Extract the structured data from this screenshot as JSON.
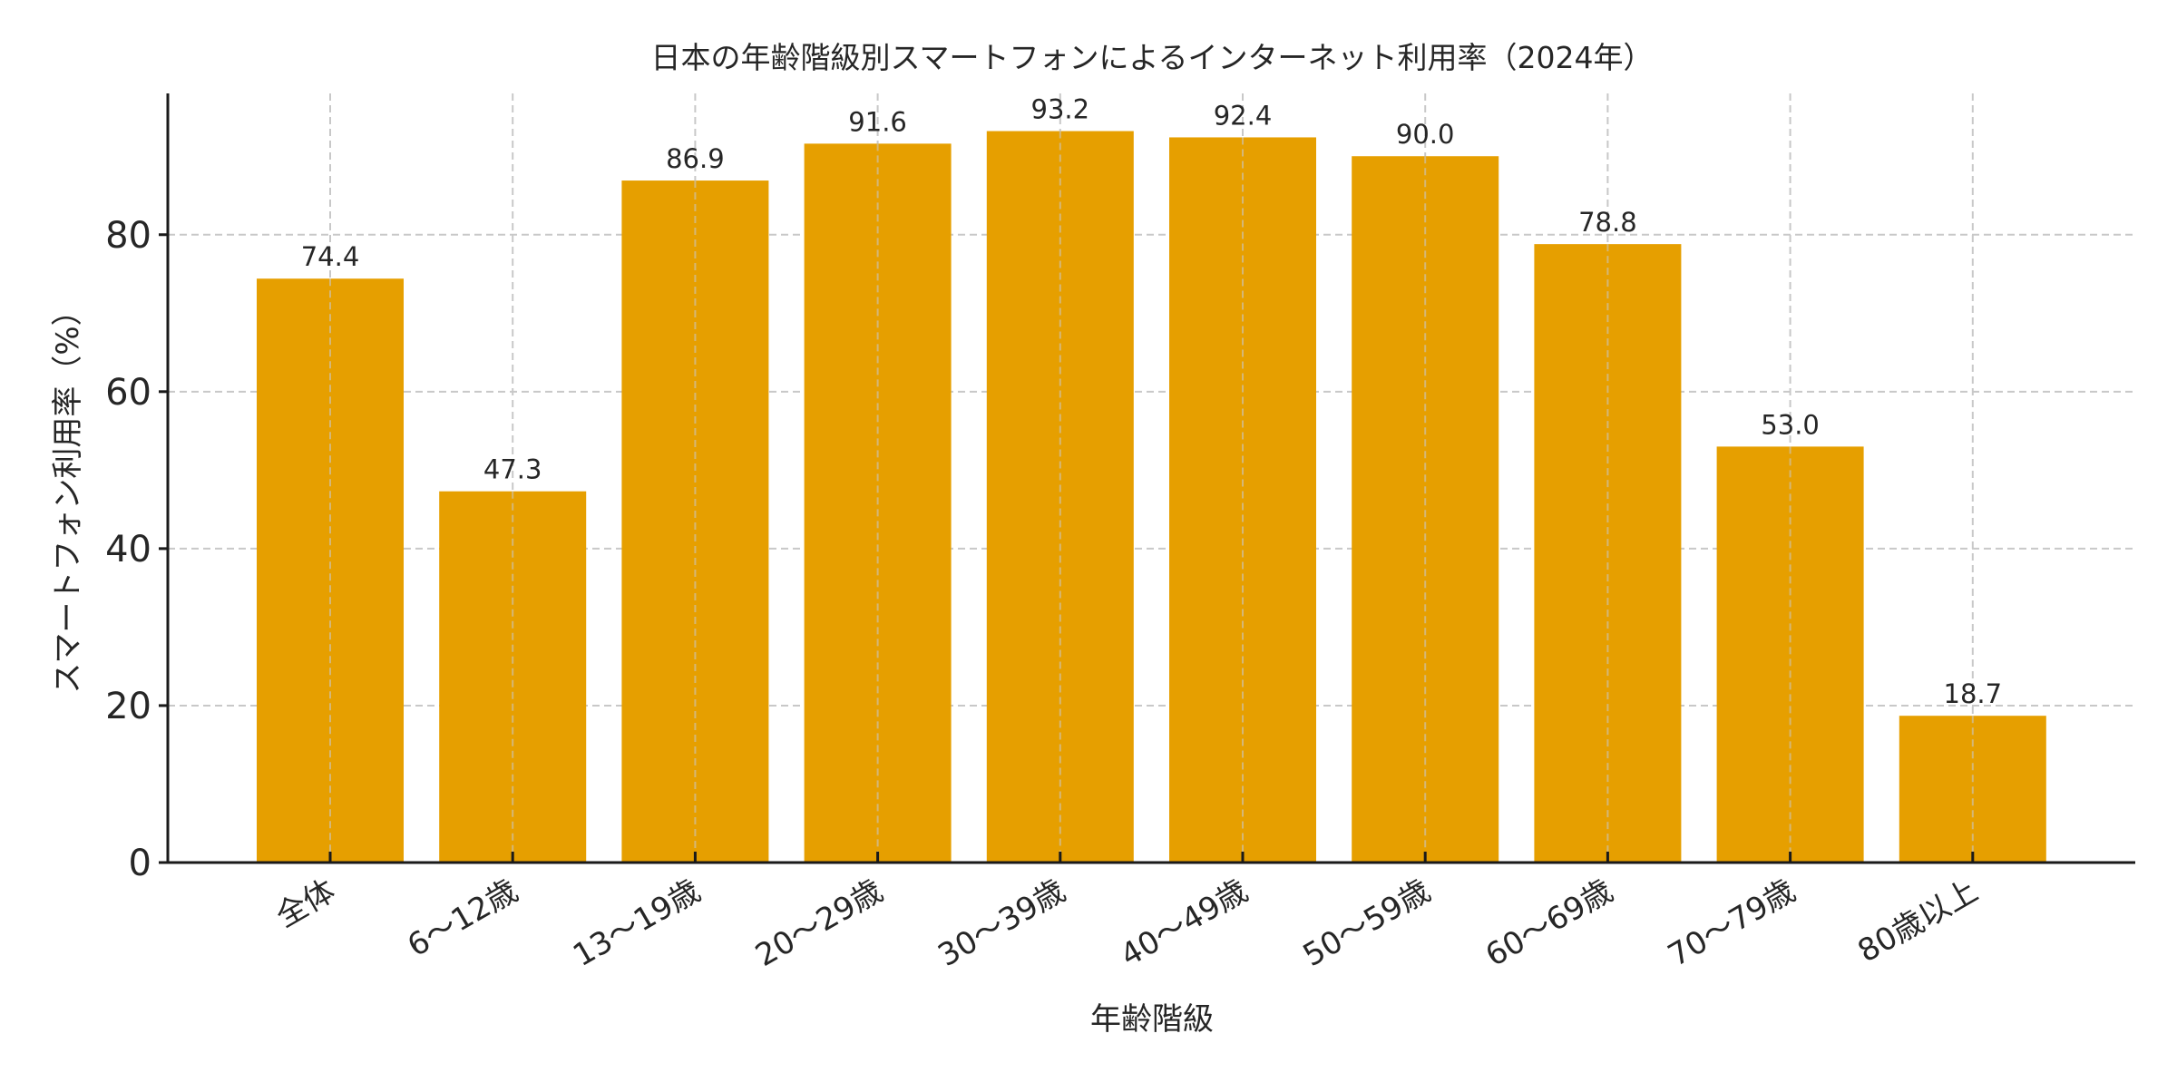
{
  "chart_data": {
    "type": "bar",
    "title": "日本の年齢階級別スマートフォンによるインターネット利用率（2024年）",
    "xlabel": "年齢階級",
    "ylabel": "スマートフォン利用率（%）",
    "categories": [
      "全体",
      "6〜12歳",
      "13〜19歳",
      "20〜29歳",
      "30〜39歳",
      "40〜49歳",
      "50〜59歳",
      "60〜69歳",
      "70〜79歳",
      "80歳以上"
    ],
    "values": [
      74.4,
      47.3,
      86.9,
      91.6,
      93.2,
      92.4,
      90.0,
      78.8,
      53.0,
      18.7
    ],
    "value_labels": [
      "74.4",
      "47.3",
      "86.9",
      "91.6",
      "93.2",
      "92.4",
      "90.0",
      "78.8",
      "53.0",
      "18.7"
    ],
    "ylim": [
      0,
      98
    ],
    "yticks": [
      0,
      20,
      40,
      60,
      80
    ],
    "ytick_labels": [
      "0",
      "20",
      "40",
      "60",
      "80"
    ],
    "grid": true,
    "bar_color": "#E69F00"
  }
}
